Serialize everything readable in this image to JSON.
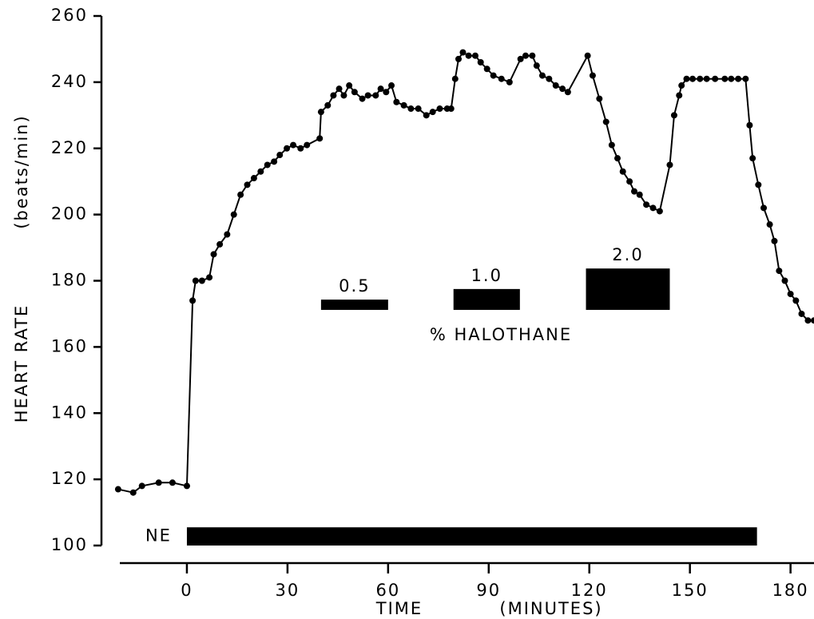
{
  "chart_data": {
    "type": "line",
    "ylabel": "HEART RATE",
    "ylabel_unit": "(beats/min)",
    "xlabel": "TIME",
    "xlabel_unit": "(MINUTES)",
    "xlim": [
      -20,
      187
    ],
    "ylim": [
      100,
      260
    ],
    "xticks": [
      0,
      30,
      60,
      90,
      120,
      150,
      180
    ],
    "yticks": [
      100,
      120,
      140,
      160,
      180,
      200,
      220,
      240,
      260
    ],
    "series": [
      {
        "name": "Heart rate",
        "color": "#000000",
        "x": [
          -20.5,
          -16,
          -13.4,
          -8.4,
          -4.3,
          0,
          1.7,
          2.6,
          4.5,
          6.7,
          8,
          9.8,
          12,
          14,
          16,
          18,
          20,
          22,
          24,
          26,
          27.7,
          29.8,
          31.7,
          33.9,
          35.8,
          39.6,
          40,
          42,
          43.7,
          45.4,
          46.8,
          48.4,
          50,
          52.3,
          54,
          56.3,
          57.8,
          59.4,
          61,
          62.5,
          64.7,
          66.8,
          69,
          71.4,
          73.3,
          75.4,
          77.6,
          78.8,
          80,
          81,
          82.3,
          84,
          86,
          87.6,
          89.5,
          91.4,
          93.8,
          96.2,
          99.5,
          101,
          103,
          104.3,
          106,
          108,
          110,
          112,
          113.6,
          119.5,
          121,
          123,
          125,
          126.7,
          128.4,
          130,
          132,
          133.4,
          135,
          137,
          139,
          141,
          144,
          145.3,
          146.8,
          147.5,
          149,
          150.8,
          153,
          155,
          157.5,
          160.4,
          162.3,
          164.4,
          166.6,
          167.8,
          168.7,
          170.4,
          172,
          173.8,
          175.2,
          176.6,
          178.3,
          180,
          181.6,
          183.3,
          185.2,
          187
        ],
        "values": [
          117,
          116,
          118,
          119,
          119,
          118,
          174,
          180,
          180,
          181,
          188,
          191,
          194,
          200,
          206,
          209,
          211,
          213,
          215,
          216,
          218,
          220,
          221,
          220,
          221,
          223,
          231,
          233,
          236,
          238,
          236,
          239,
          237,
          235,
          236,
          236,
          238,
          237,
          239,
          234,
          233,
          232,
          232,
          230,
          231,
          232,
          232,
          232,
          241,
          247,
          249,
          248,
          248,
          246,
          244,
          242,
          241,
          240,
          247,
          248,
          248,
          245,
          242,
          241,
          239,
          238,
          237,
          248,
          242,
          235,
          228,
          221,
          217,
          213,
          210,
          207,
          206,
          203,
          202,
          201,
          215,
          230,
          236,
          239,
          241,
          241,
          241,
          241,
          241,
          241,
          241,
          241,
          241,
          227,
          217,
          209,
          202,
          197,
          192,
          183,
          180,
          176,
          174,
          170,
          168,
          168
        ]
      }
    ],
    "treatment_bars": [
      {
        "label": "NE",
        "x": [
          0,
          170
        ],
        "y": [
          100,
          105.5
        ]
      },
      {
        "label": "0.5",
        "x": [
          40,
          60
        ],
        "y": [
          171.2,
          174.3
        ]
      },
      {
        "label": "1.0",
        "x": [
          79.5,
          99.3
        ],
        "y": [
          171.2,
          177.5
        ]
      },
      {
        "label": "2.0",
        "x": [
          119,
          144
        ],
        "y": [
          171.2,
          183.7
        ]
      }
    ],
    "annotation": "% HALOTHANE"
  }
}
